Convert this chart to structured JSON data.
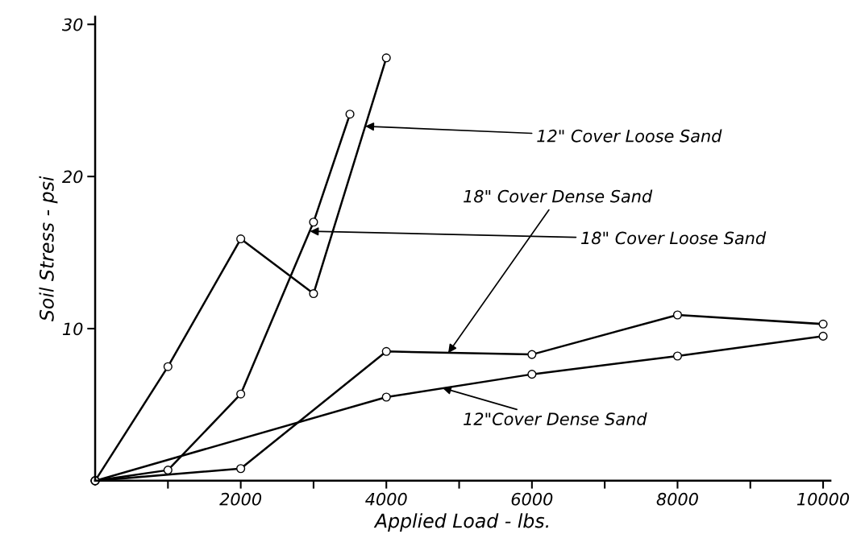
{
  "chart_data": {
    "type": "line",
    "xlabel": "Applied Load - lbs.",
    "ylabel": "Soil Stress - psi",
    "xlim": [
      0,
      10100
    ],
    "ylim": [
      0,
      30.5
    ],
    "xticks": [
      {
        "value": 1000,
        "label": null
      },
      2000,
      {
        "value": 3000,
        "label": null
      },
      4000,
      {
        "value": 5000,
        "label": null
      },
      6000,
      {
        "value": 7000,
        "label": null
      },
      8000,
      {
        "value": 9000,
        "label": null
      },
      10000
    ],
    "yticks": [
      10,
      20,
      30
    ],
    "grid": false,
    "legend": false,
    "marker": "circle",
    "line_style": "solid",
    "series": [
      {
        "color": "#000000",
        "x": [
          0,
          1000,
          2000,
          3000,
          4000
        ],
        "values": [
          0,
          7.5,
          15.9,
          12.3,
          27.8
        ]
      },
      {
        "color": "#000000",
        "x": [
          0,
          1000,
          2000,
          3000,
          3500
        ],
        "values": [
          0,
          0.7,
          5.7,
          17.0,
          24.1
        ]
      },
      {
        "color": "#000000",
        "x": [
          0,
          2000,
          4000,
          6000,
          8000,
          10000
        ],
        "values": [
          0,
          0.8,
          8.5,
          8.3,
          10.9,
          10.3
        ]
      },
      {
        "color": "#000000",
        "x": [
          0,
          4000,
          6000,
          8000,
          10000
        ],
        "values": [
          0,
          5.5,
          7.0,
          8.2,
          9.5
        ]
      }
    ],
    "annotations": [
      {
        "text": "12\" Cover Loose Sand",
        "x": 3710,
        "y": 23.3
      },
      {
        "text": "18\" Cover Loose Sand",
        "x": 2950,
        "y": 16.4
      },
      {
        "text": "18\" Cover Dense Sand",
        "x": 4850,
        "y": 8.4
      },
      {
        "text": "12\"Cover Dense Sand",
        "x": 4770,
        "y": 6.1
      }
    ]
  }
}
